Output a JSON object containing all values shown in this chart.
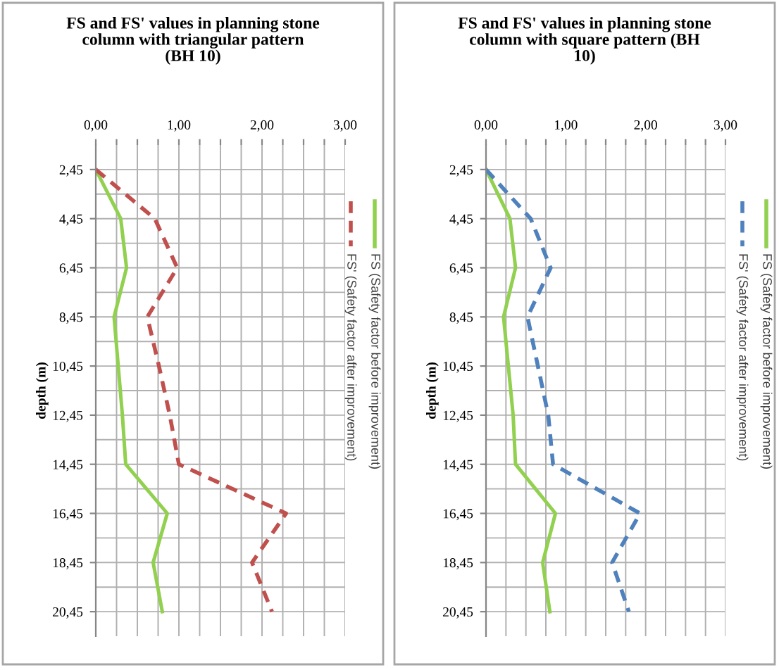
{
  "chart_data": [
    {
      "type": "line",
      "orientation": "horizontal",
      "title": "FS and FS' values in planning stone column with triangular pattern (BH 10)",
      "ylabel": "depth (m)",
      "categories": [
        "2,45",
        "4,45",
        "6,45",
        "8,45",
        "10,45",
        "12,45",
        "14,45",
        "16,45",
        "18,45",
        "20,45"
      ],
      "series": [
        {
          "name": "FS (Safety factor before improvement)",
          "color": "#92d050",
          "line_style": "solid",
          "values": [
            0,
            0.3,
            0.37,
            0.22,
            0.27,
            0.32,
            0.36,
            0.86,
            0.69,
            0.8
          ]
        },
        {
          "name": "FS' (Safety factor after improvement)",
          "color": "#c0504d",
          "line_style": "dashed",
          "values": [
            0,
            0.71,
            0.98,
            0.62,
            0.76,
            0.89,
            1.0,
            2.29,
            1.88,
            2.12
          ]
        }
      ],
      "xlim": [
        0,
        3
      ],
      "xticks": [
        {
          "value": 0,
          "label": "0,00"
        },
        {
          "value": 0.25,
          "label": null
        },
        {
          "value": 0.5,
          "label": null
        },
        {
          "value": 0.75,
          "label": null
        },
        {
          "value": 1,
          "label": "1,00"
        },
        {
          "value": 1.25,
          "label": null
        },
        {
          "value": 1.5,
          "label": null
        },
        {
          "value": 1.75,
          "label": null
        },
        {
          "value": 2,
          "label": "2,00"
        },
        {
          "value": 2.25,
          "label": null
        },
        {
          "value": 2.5,
          "label": null
        },
        {
          "value": 2.75,
          "label": null
        },
        {
          "value": 3,
          "label": "3,00"
        }
      ],
      "grid": true,
      "legend": "right"
    },
    {
      "type": "line",
      "orientation": "horizontal",
      "title": "FS and FS' values in planning stone column with square pattern (BH 10)",
      "ylabel": "depth (m)",
      "categories": [
        "2,45",
        "4,45",
        "6,45",
        "8,45",
        "10,45",
        "12,45",
        "14,45",
        "16,45",
        "18,45",
        "20,45"
      ],
      "series": [
        {
          "name": "FS (Safety factor before improvement)",
          "color": "#92d050",
          "line_style": "solid",
          "values": [
            0,
            0.3,
            0.37,
            0.22,
            0.28,
            0.34,
            0.37,
            0.87,
            0.71,
            0.8
          ]
        },
        {
          "name": "FS' (Safety factor after improvement)",
          "color": "#4f81bd",
          "line_style": "dashed",
          "values": [
            0,
            0.56,
            0.81,
            0.52,
            0.65,
            0.78,
            0.84,
            1.93,
            1.58,
            1.79
          ]
        }
      ],
      "xlim": [
        0,
        3
      ],
      "xticks": [
        {
          "value": 0,
          "label": "0,00"
        },
        {
          "value": 0.25,
          "label": null
        },
        {
          "value": 0.5,
          "label": null
        },
        {
          "value": 0.75,
          "label": null
        },
        {
          "value": 1,
          "label": "1,00"
        },
        {
          "value": 1.25,
          "label": null
        },
        {
          "value": 1.5,
          "label": null
        },
        {
          "value": 1.75,
          "label": null
        },
        {
          "value": 2,
          "label": "2,00"
        },
        {
          "value": 2.25,
          "label": null
        },
        {
          "value": 2.5,
          "label": null
        },
        {
          "value": 2.75,
          "label": null
        },
        {
          "value": 3,
          "label": "3,00"
        }
      ],
      "grid": true,
      "legend": "right"
    }
  ]
}
